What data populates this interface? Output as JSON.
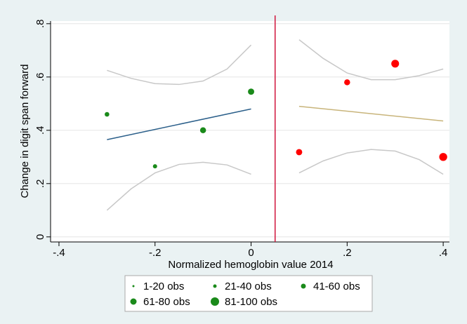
{
  "chart_data": {
    "type": "scatter",
    "x_label": "Normalized hemoglobin value 2014",
    "y_label": "Change in digit span forward",
    "xlim": [
      -0.4175,
      0.413
    ],
    "ylim": [
      -0.019,
      0.81
    ],
    "xticks": [
      {
        "value": -0.4,
        "label": "-.4"
      },
      {
        "value": -0.2,
        "label": "-.2"
      },
      0,
      {
        "value": 0.2,
        "label": ".2"
      },
      {
        "value": 0.4,
        "label": ".4"
      }
    ],
    "yticks": [
      0,
      {
        "value": 0.2,
        "label": ".2"
      },
      {
        "value": 0.4,
        "label": ".4"
      },
      {
        "value": 0.6,
        "label": ".6"
      },
      {
        "value": 0.8,
        "label": ".8"
      }
    ],
    "grid": true,
    "cutoff": 0.05,
    "cutoff_color": "#d0143c",
    "series": [
      {
        "color": "#1a8a1a",
        "x": [
          -0.3,
          -0.2,
          -0.1,
          0
        ],
        "values": [
          0.46,
          0.265,
          0.4,
          0.545
        ],
        "obs": [
          30,
          25,
          50,
          55
        ]
      },
      {
        "color": "#ff0000",
        "x": [
          0.1,
          0.2,
          0.3,
          0.4
        ],
        "values": [
          0.318,
          0.58,
          0.65,
          0.3
        ],
        "obs": [
          55,
          50,
          85,
          90
        ]
      }
    ],
    "fits": [
      {
        "color": "#2b5f8a",
        "x": [
          -0.3,
          0
        ],
        "values": [
          0.365,
          0.48
        ]
      },
      {
        "color": "#c8b47a",
        "x": [
          0.1,
          0.4
        ],
        "values": [
          0.49,
          0.435
        ]
      }
    ],
    "ci_color": "#c8c8c8",
    "ci": [
      {
        "x": [
          -0.3,
          -0.25,
          -0.2,
          -0.15,
          -0.1,
          -0.05,
          0
        ],
        "values": [
          0.625,
          0.595,
          0.575,
          0.572,
          0.585,
          0.63,
          0.72
        ]
      },
      {
        "x": [
          -0.3,
          -0.25,
          -0.2,
          -0.15,
          -0.1,
          -0.05,
          0
        ],
        "values": [
          0.1,
          0.18,
          0.24,
          0.272,
          0.28,
          0.27,
          0.235
        ]
      },
      {
        "x": [
          0.1,
          0.15,
          0.2,
          0.25,
          0.3,
          0.35,
          0.4
        ],
        "values": [
          0.74,
          0.67,
          0.615,
          0.59,
          0.59,
          0.605,
          0.63
        ]
      },
      {
        "x": [
          0.1,
          0.15,
          0.2,
          0.25,
          0.3,
          0.35,
          0.4
        ],
        "values": [
          0.24,
          0.285,
          0.315,
          0.328,
          0.322,
          0.29,
          0.235
        ]
      }
    ],
    "legend": {
      "color": "#1a8a1a",
      "entries": [
        "1-20 obs",
        "21-40 obs",
        "41-60 obs",
        "61-80 obs",
        "81-100 obs"
      ]
    }
  }
}
